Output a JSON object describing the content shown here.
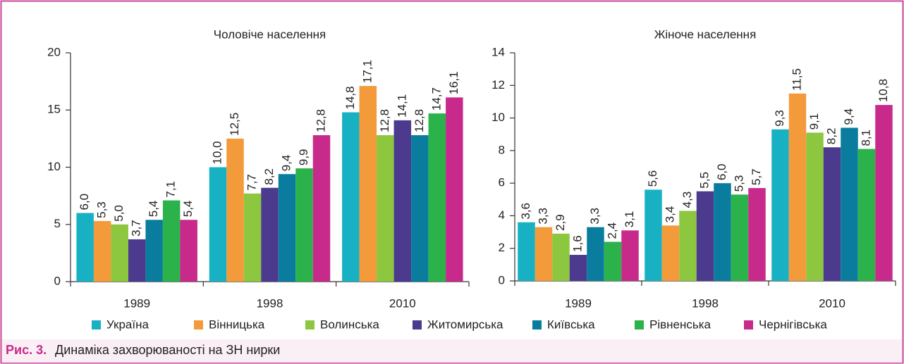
{
  "chart_data": [
    {
      "type": "bar",
      "title": "Чоловіче населення",
      "categories": [
        "1989",
        "1998",
        "2010"
      ],
      "ylim": [
        0,
        20
      ],
      "yticks": [
        0,
        5,
        10,
        15,
        20
      ],
      "series": [
        {
          "name": "Україна",
          "color": "#17b1c3",
          "values": [
            6.0,
            10.0,
            14.8
          ],
          "value_labels": [
            "6,0",
            "10,0",
            "14,8"
          ]
        },
        {
          "name": "Вінницька",
          "color": "#f39a3a",
          "values": [
            5.3,
            12.5,
            17.1
          ],
          "value_labels": [
            "5,3",
            "12,5",
            "17,1"
          ]
        },
        {
          "name": "Волинська",
          "color": "#8dc63f",
          "values": [
            5.0,
            7.7,
            12.8
          ],
          "value_labels": [
            "5,0",
            "7,7",
            "12,8"
          ]
        },
        {
          "name": "Житомирська",
          "color": "#4c3a8e",
          "values": [
            3.7,
            8.2,
            14.1
          ],
          "value_labels": [
            "3,7",
            "8,2",
            "14,1"
          ]
        },
        {
          "name": "Київська",
          "color": "#0a7d9e",
          "values": [
            5.4,
            9.4,
            12.8
          ],
          "value_labels": [
            "5,4",
            "9,4",
            "12,8"
          ]
        },
        {
          "name": "Рівненська",
          "color": "#2bb24b",
          "values": [
            7.1,
            9.9,
            14.7
          ],
          "value_labels": [
            "7,1",
            "9,9",
            "14,7"
          ]
        },
        {
          "name": "Чернігівська",
          "color": "#c82a8b",
          "values": [
            5.4,
            12.8,
            16.1
          ],
          "value_labels": [
            "5,4",
            "12,8",
            "16,1"
          ]
        }
      ]
    },
    {
      "type": "bar",
      "title": "Жіноче населення",
      "categories": [
        "1989",
        "1998",
        "2010"
      ],
      "ylim": [
        0,
        14
      ],
      "yticks": [
        0,
        2,
        4,
        6,
        8,
        10,
        12,
        14
      ],
      "series": [
        {
          "color": "#17b1c3",
          "values": [
            3.6,
            5.6,
            9.3
          ],
          "value_labels": [
            "3,6",
            "5,6",
            "9,3"
          ]
        },
        {
          "color": "#f39a3a",
          "values": [
            3.3,
            3.4,
            11.5
          ],
          "value_labels": [
            "3,3",
            "3,4",
            "11,5"
          ]
        },
        {
          "color": "#8dc63f",
          "values": [
            2.9,
            4.3,
            9.1
          ],
          "value_labels": [
            "2,9",
            "4,3",
            "9,1"
          ]
        },
        {
          "color": "#4c3a8e",
          "values": [
            1.6,
            5.5,
            8.2
          ],
          "value_labels": [
            "1,6",
            "5,5",
            "8,2"
          ]
        },
        {
          "color": "#0a7d9e",
          "values": [
            3.3,
            6.0,
            9.4
          ],
          "value_labels": [
            "3,3",
            "6,0",
            "9,4"
          ]
        },
        {
          "color": "#2bb24b",
          "values": [
            2.4,
            5.3,
            8.1
          ],
          "value_labels": [
            "2,4",
            "5,3",
            "8,1"
          ]
        },
        {
          "color": "#c82a8b",
          "values": [
            3.1,
            5.7,
            10.8
          ],
          "value_labels": [
            "3,1",
            "5,7",
            "10,8"
          ]
        }
      ]
    }
  ],
  "caption": {
    "label": "Рис. 3.",
    "text": "Динаміка захворюваності на ЗН нирки"
  }
}
